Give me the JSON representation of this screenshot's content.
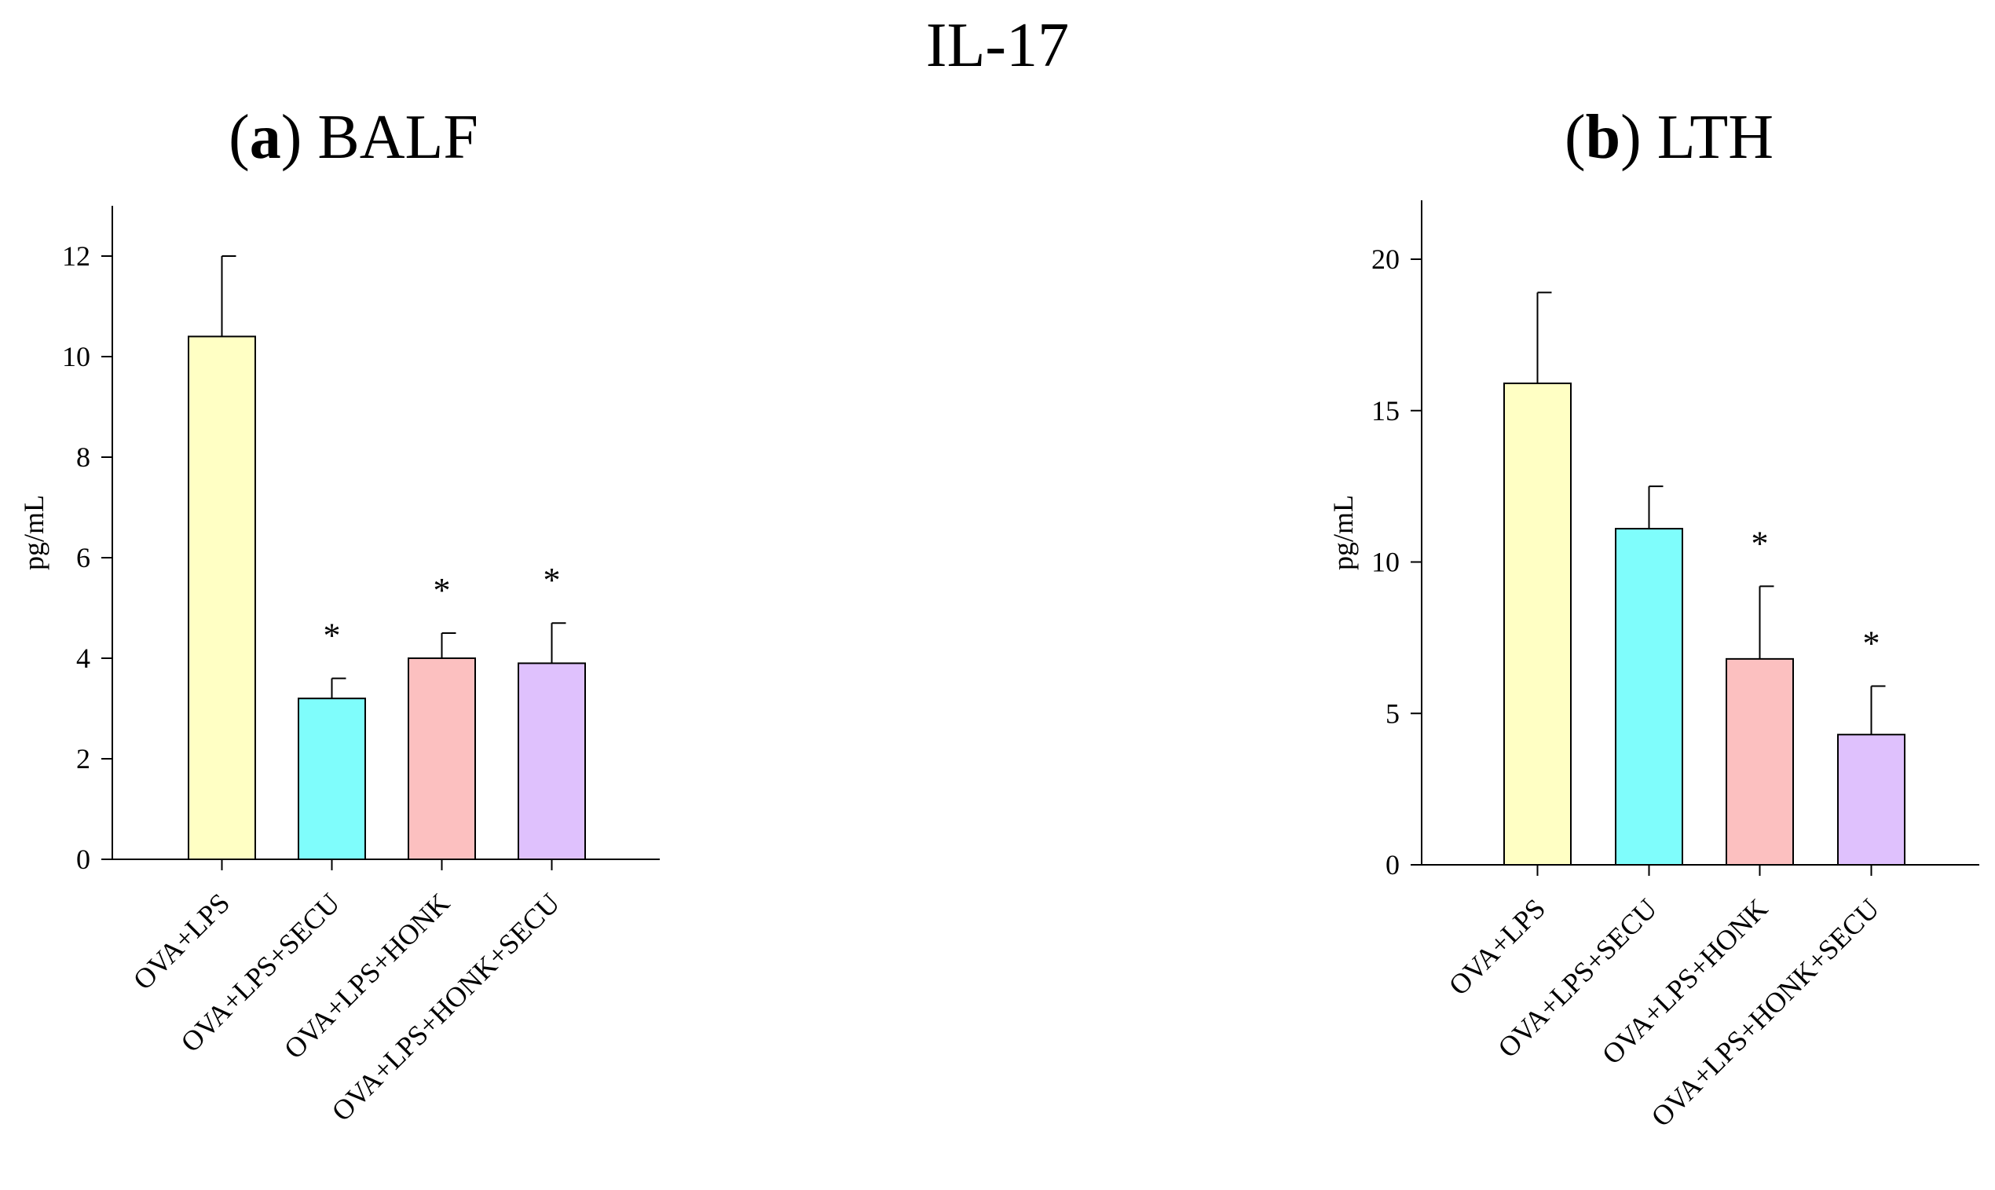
{
  "figure": {
    "main_title": "IL-17"
  },
  "chart_data": [
    {
      "type": "bar",
      "panel_letter": "a",
      "panel_name": "BALF",
      "title": "(a) BALF",
      "ylabel": "pg/mL",
      "xlabel": "",
      "ylim": [
        0,
        13
      ],
      "yticks": [
        0,
        2,
        4,
        6,
        8,
        10,
        12
      ],
      "categories": [
        "OVA+LPS",
        "OVA+LPS+SECU",
        "OVA+LPS+HONK",
        "OVA+LPS+HONK+SECU"
      ],
      "values": [
        10.4,
        3.2,
        4.0,
        3.9
      ],
      "errors": [
        1.6,
        0.4,
        0.5,
        0.8
      ],
      "significance": [
        "",
        "*",
        "*",
        "*"
      ],
      "colors": [
        "#ffffc4",
        "#7ffdfc",
        "#fcc0c0",
        "#dfc1fd"
      ]
    },
    {
      "type": "bar",
      "panel_letter": "b",
      "panel_name": "LTH",
      "title": "(b) LTH",
      "ylabel": "pg/mL",
      "xlabel": "",
      "ylim": [
        0,
        22
      ],
      "yticks": [
        0,
        5,
        10,
        15,
        20
      ],
      "categories": [
        "OVA+LPS",
        "OVA+LPS+SECU",
        "OVA+LPS+HONK",
        "OVA+LPS+HONK+SECU"
      ],
      "values": [
        15.9,
        11.1,
        6.8,
        4.3
      ],
      "errors": [
        3.0,
        1.4,
        2.4,
        1.6
      ],
      "significance": [
        "",
        "",
        "*",
        "*"
      ],
      "colors": [
        "#ffffc4",
        "#7ffdfc",
        "#fcc0c0",
        "#dfc1fd"
      ]
    }
  ]
}
